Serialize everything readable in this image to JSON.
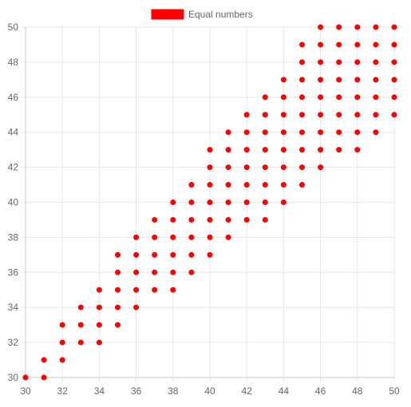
{
  "chart_data": {
    "type": "scatter",
    "legend": {
      "position": "top",
      "entries": [
        "Equal numbers"
      ]
    },
    "series": [
      {
        "name": "Equal numbers",
        "color": "#ff0000",
        "points": [
          [
            30,
            30
          ],
          [
            31,
            30
          ],
          [
            31,
            31
          ],
          [
            32,
            31
          ],
          [
            32,
            32
          ],
          [
            32,
            33
          ],
          [
            33,
            32
          ],
          [
            33,
            33
          ],
          [
            33,
            34
          ],
          [
            34,
            32
          ],
          [
            34,
            33
          ],
          [
            34,
            34
          ],
          [
            34,
            35
          ],
          [
            35,
            33
          ],
          [
            35,
            34
          ],
          [
            35,
            35
          ],
          [
            35,
            36
          ],
          [
            35,
            37
          ],
          [
            36,
            34
          ],
          [
            36,
            35
          ],
          [
            36,
            36
          ],
          [
            36,
            37
          ],
          [
            36,
            38
          ],
          [
            37,
            35
          ],
          [
            37,
            36
          ],
          [
            37,
            37
          ],
          [
            37,
            38
          ],
          [
            37,
            39
          ],
          [
            38,
            35
          ],
          [
            38,
            36
          ],
          [
            38,
            37
          ],
          [
            38,
            38
          ],
          [
            38,
            39
          ],
          [
            38,
            40
          ],
          [
            39,
            36
          ],
          [
            39,
            37
          ],
          [
            39,
            38
          ],
          [
            39,
            39
          ],
          [
            39,
            40
          ],
          [
            39,
            41
          ],
          [
            40,
            37
          ],
          [
            40,
            38
          ],
          [
            40,
            39
          ],
          [
            40,
            40
          ],
          [
            40,
            41
          ],
          [
            40,
            42
          ],
          [
            40,
            43
          ],
          [
            41,
            38
          ],
          [
            41,
            39
          ],
          [
            41,
            40
          ],
          [
            41,
            41
          ],
          [
            41,
            42
          ],
          [
            41,
            43
          ],
          [
            41,
            44
          ],
          [
            42,
            39
          ],
          [
            42,
            40
          ],
          [
            42,
            41
          ],
          [
            42,
            42
          ],
          [
            42,
            43
          ],
          [
            42,
            44
          ],
          [
            42,
            45
          ],
          [
            43,
            39
          ],
          [
            43,
            40
          ],
          [
            43,
            41
          ],
          [
            43,
            42
          ],
          [
            43,
            43
          ],
          [
            43,
            44
          ],
          [
            43,
            45
          ],
          [
            43,
            46
          ],
          [
            44,
            40
          ],
          [
            44,
            41
          ],
          [
            44,
            42
          ],
          [
            44,
            43
          ],
          [
            44,
            44
          ],
          [
            44,
            45
          ],
          [
            44,
            46
          ],
          [
            44,
            47
          ],
          [
            45,
            41
          ],
          [
            45,
            42
          ],
          [
            45,
            43
          ],
          [
            45,
            44
          ],
          [
            45,
            45
          ],
          [
            45,
            46
          ],
          [
            45,
            47
          ],
          [
            45,
            48
          ],
          [
            45,
            49
          ],
          [
            46,
            42
          ],
          [
            46,
            43
          ],
          [
            46,
            44
          ],
          [
            46,
            45
          ],
          [
            46,
            46
          ],
          [
            46,
            47
          ],
          [
            46,
            48
          ],
          [
            46,
            49
          ],
          [
            46,
            50
          ],
          [
            47,
            43
          ],
          [
            47,
            44
          ],
          [
            47,
            45
          ],
          [
            47,
            46
          ],
          [
            47,
            47
          ],
          [
            47,
            48
          ],
          [
            47,
            49
          ],
          [
            47,
            50
          ],
          [
            48,
            43
          ],
          [
            48,
            44
          ],
          [
            48,
            45
          ],
          [
            48,
            46
          ],
          [
            48,
            47
          ],
          [
            48,
            48
          ],
          [
            48,
            49
          ],
          [
            48,
            50
          ],
          [
            49,
            44
          ],
          [
            49,
            45
          ],
          [
            49,
            46
          ],
          [
            49,
            47
          ],
          [
            49,
            48
          ],
          [
            49,
            49
          ],
          [
            49,
            50
          ],
          [
            50,
            45
          ],
          [
            50,
            46
          ],
          [
            50,
            47
          ],
          [
            50,
            48
          ],
          [
            50,
            49
          ],
          [
            50,
            50
          ]
        ]
      }
    ],
    "x_axis": {
      "min": 30,
      "max": 50,
      "step": 2,
      "label": ""
    },
    "y_axis": {
      "min": 30,
      "max": 50,
      "step": 2,
      "label": ""
    },
    "grid": true
  }
}
